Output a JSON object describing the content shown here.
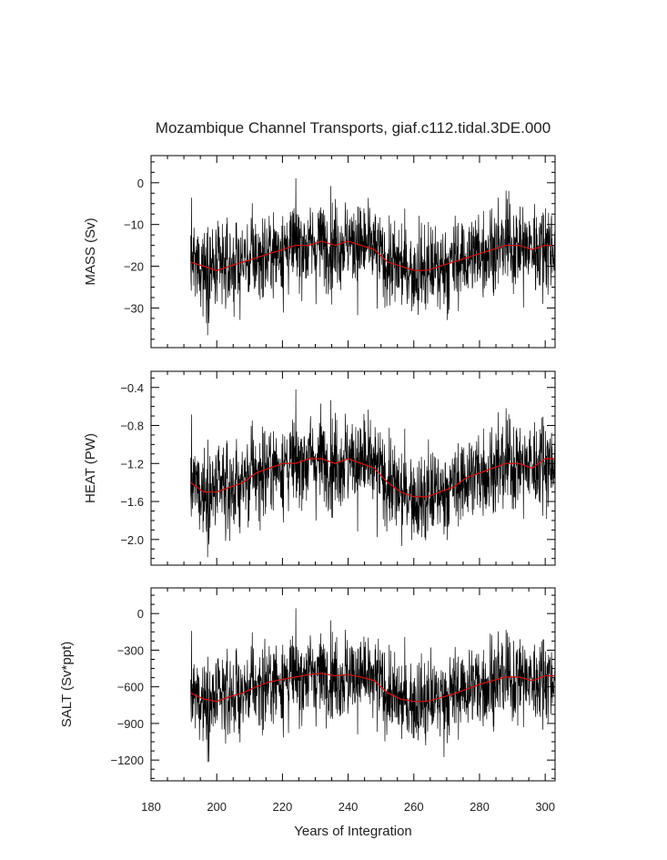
{
  "chart_data": {
    "type": "line",
    "title": "Mozambique Channel Transports, giaf.c112.tidal.3DE.000",
    "xlabel": "Years of Integration",
    "xlim": [
      180,
      303
    ],
    "x_ticks": [
      180,
      200,
      220,
      240,
      260,
      280,
      300
    ],
    "x_tick_labels": [
      "180",
      "200",
      "220",
      "240",
      "260",
      "280",
      "300"
    ],
    "x_start": 192,
    "x_end": 303,
    "series_colors": {
      "raw": "#000000",
      "smoothed": "#cc1111"
    },
    "panels": [
      {
        "ylabel": "MASS (Sv)",
        "ylim": [
          -39.5,
          6.5
        ],
        "y_ticks": [
          0,
          -10,
          -20,
          -30
        ],
        "y_tick_labels": [
          "0",
          "−10",
          "−20",
          "−30"
        ],
        "mean": -20,
        "noise_sd": 5.5,
        "smoothed_series": {
          "name": "MASS smoothed",
          "x": [
            192,
            196,
            200,
            204,
            208,
            212,
            216,
            220,
            224,
            228,
            232,
            236,
            240,
            244,
            248,
            252,
            256,
            260,
            264,
            268,
            272,
            276,
            280,
            284,
            288,
            292,
            296,
            300,
            303
          ],
          "y": [
            -19,
            -20,
            -21,
            -20,
            -19,
            -18,
            -17,
            -16,
            -15,
            -15,
            -14,
            -15,
            -14,
            -15,
            -16,
            -19,
            -20,
            -21,
            -21,
            -20,
            -19,
            -18,
            -17,
            -16,
            -15,
            -15,
            -16,
            -15,
            -15
          ]
        }
      },
      {
        "ylabel": "HEAT (PW)",
        "ylim": [
          -2.27,
          -0.23
        ],
        "y_ticks": [
          -0.4,
          -0.8,
          -1.2,
          -1.6,
          -2.0
        ],
        "y_tick_labels": [
          "−0.4",
          "−0.8",
          "−1.2",
          "−1.6",
          "−2.0"
        ],
        "mean": -1.45,
        "noise_sd": 0.25,
        "smoothed_series": {
          "name": "HEAT smoothed",
          "x": [
            192,
            196,
            200,
            204,
            208,
            212,
            216,
            220,
            224,
            228,
            232,
            236,
            240,
            244,
            248,
            252,
            256,
            260,
            264,
            268,
            272,
            276,
            280,
            284,
            288,
            292,
            296,
            300,
            303
          ],
          "y": [
            -1.4,
            -1.5,
            -1.5,
            -1.45,
            -1.4,
            -1.3,
            -1.25,
            -1.2,
            -1.2,
            -1.15,
            -1.15,
            -1.2,
            -1.15,
            -1.2,
            -1.25,
            -1.4,
            -1.5,
            -1.55,
            -1.55,
            -1.5,
            -1.45,
            -1.35,
            -1.3,
            -1.25,
            -1.2,
            -1.2,
            -1.25,
            -1.15,
            -1.15
          ]
        }
      },
      {
        "ylabel": "SALT (Sv*ppt)",
        "ylim": [
          -1370,
          210
        ],
        "y_ticks": [
          0,
          -300,
          -600,
          -900,
          -1200
        ],
        "y_tick_labels": [
          "0",
          "−300",
          "−600",
          "−900",
          "−1200"
        ],
        "mean": -680,
        "noise_sd": 185,
        "smoothed_series": {
          "name": "SALT smoothed",
          "x": [
            192,
            196,
            200,
            204,
            208,
            212,
            216,
            220,
            224,
            228,
            232,
            236,
            240,
            244,
            248,
            252,
            256,
            260,
            264,
            268,
            272,
            276,
            280,
            284,
            288,
            292,
            296,
            300,
            303
          ],
          "y": [
            -650,
            -700,
            -720,
            -680,
            -650,
            -600,
            -560,
            -540,
            -520,
            -500,
            -490,
            -510,
            -500,
            -520,
            -550,
            -650,
            -700,
            -720,
            -720,
            -690,
            -660,
            -620,
            -580,
            -550,
            -520,
            -520,
            -550,
            -510,
            -510
          ]
        }
      }
    ]
  }
}
